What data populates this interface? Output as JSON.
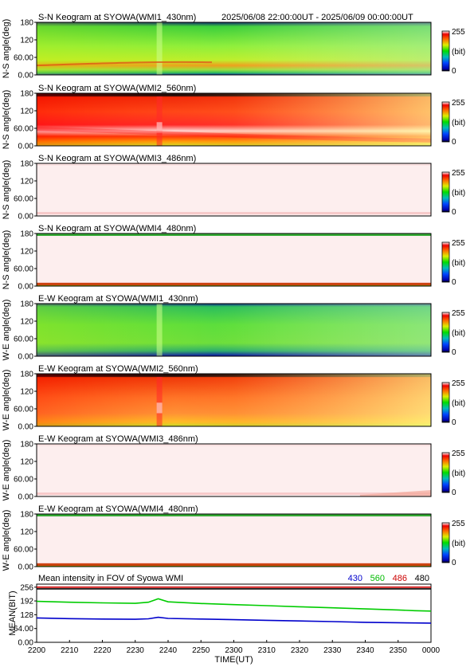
{
  "header": {
    "time_range": "2025/06/08 22:00:00UT - 2025/06/09 00:00:00UT"
  },
  "chart_data": [
    {
      "type": "heatmap",
      "title": "S-N Keogram at SYOWA(WMI1_430nm)",
      "ylabel": "N-S angle(deg)",
      "yticks": [
        "180",
        "120",
        "60.00",
        "0.00"
      ],
      "ylim": [
        0,
        180
      ],
      "colorbar": {
        "max_label": "255",
        "unit_label": "(bit)",
        "min_label": "0"
      },
      "scheme": "green"
    },
    {
      "type": "heatmap",
      "title": "S-N Keogram at SYOWA(WMI2_560nm)",
      "ylabel": "N-S angle(deg)",
      "yticks": [
        "180",
        "120",
        "60.00",
        "0.00"
      ],
      "ylim": [
        0,
        180
      ],
      "colorbar": {
        "max_label": "255",
        "unit_label": "(bit)",
        "min_label": "0"
      },
      "scheme": "red"
    },
    {
      "type": "heatmap",
      "title": "S-N Keogram at SYOWA(WMI3_486nm)",
      "ylabel": "N-S angle(deg)",
      "yticks": [
        "180",
        "120",
        "60.00",
        "0.00"
      ],
      "ylim": [
        0,
        180
      ],
      "colorbar": {
        "max_label": "255",
        "unit_label": "(bit)",
        "min_label": "0"
      },
      "scheme": "white"
    },
    {
      "type": "heatmap",
      "title": "S-N Keogram at SYOWA(WMI4_480nm)",
      "ylabel": "N-S angle(deg)",
      "yticks": [
        "180",
        "120",
        "60.00",
        "0.00"
      ],
      "ylim": [
        0,
        180
      ],
      "colorbar": {
        "max_label": "255",
        "unit_label": "(bit)",
        "min_label": "0"
      },
      "scheme": "white"
    },
    {
      "type": "heatmap",
      "title": "E-W Keogram at SYOWA(WMI1_430nm)",
      "ylabel": "W-E angle(deg)",
      "yticks": [
        "180",
        "120",
        "60.00",
        "0.00"
      ],
      "ylim": [
        0,
        180
      ],
      "colorbar": {
        "max_label": "255",
        "unit_label": "(bit)",
        "min_label": "0"
      },
      "scheme": "green"
    },
    {
      "type": "heatmap",
      "title": "E-W Keogram at SYOWA(WMI2_560nm)",
      "ylabel": "W-E angle(deg)",
      "yticks": [
        "180",
        "120",
        "60.00",
        "0.00"
      ],
      "ylim": [
        0,
        180
      ],
      "colorbar": {
        "max_label": "255",
        "unit_label": "(bit)",
        "min_label": "0"
      },
      "scheme": "red"
    },
    {
      "type": "heatmap",
      "title": "E-W Keogram at SYOWA(WMI3_486nm)",
      "ylabel": "W-E angle(deg)",
      "yticks": [
        "180",
        "120",
        "60.00",
        "0.00"
      ],
      "ylim": [
        0,
        180
      ],
      "colorbar": {
        "max_label": "255",
        "unit_label": "(bit)",
        "min_label": "0"
      },
      "scheme": "white"
    },
    {
      "type": "heatmap",
      "title": "E-W Keogram at SYOWA(WMI4_480nm)",
      "ylabel": "W-E angle(deg)",
      "yticks": [
        "180",
        "120",
        "60.00",
        "0.00"
      ],
      "ylim": [
        0,
        180
      ],
      "colorbar": {
        "max_label": "255",
        "unit_label": "(bit)",
        "min_label": "0"
      },
      "scheme": "white"
    },
    {
      "type": "line",
      "title": "Mean intensity in FOV of Syowa WMI",
      "ylabel": "MEAN(BIT)",
      "xlabel": "TIME(UT)",
      "ylim": [
        0,
        270
      ],
      "yticks": [
        "256",
        "192",
        "128",
        "64.00",
        "0.00"
      ],
      "xticks": [
        "2200",
        "2210",
        "2220",
        "2230",
        "2240",
        "2250",
        "2300",
        "2310",
        "2320",
        "2330",
        "2340",
        "2350",
        "0000"
      ],
      "x": [
        0,
        10,
        20,
        30,
        34,
        37,
        40,
        50,
        60,
        70,
        80,
        90,
        100,
        110,
        115,
        120
      ],
      "series": [
        {
          "name": "430",
          "color": "#0000cc",
          "values": [
            113,
            110,
            108,
            107,
            109,
            116,
            111,
            108,
            105,
            102,
            99,
            96,
            93,
            91,
            90,
            89
          ]
        },
        {
          "name": "560",
          "color": "#00cc00",
          "values": [
            190,
            186,
            183,
            181,
            186,
            202,
            188,
            180,
            175,
            170,
            165,
            160,
            155,
            150,
            147,
            145
          ]
        },
        {
          "name": "486",
          "color": "#cc0000",
          "values": [
            256,
            256,
            256,
            256,
            256,
            256,
            256,
            256,
            256,
            256,
            256,
            256,
            256,
            256,
            256,
            256
          ]
        },
        {
          "name": "480",
          "color": "#000000",
          "values": [
            248,
            248,
            248,
            248,
            248,
            248,
            248,
            248,
            248,
            248,
            248,
            248,
            248,
            248,
            248,
            248
          ]
        }
      ]
    }
  ]
}
